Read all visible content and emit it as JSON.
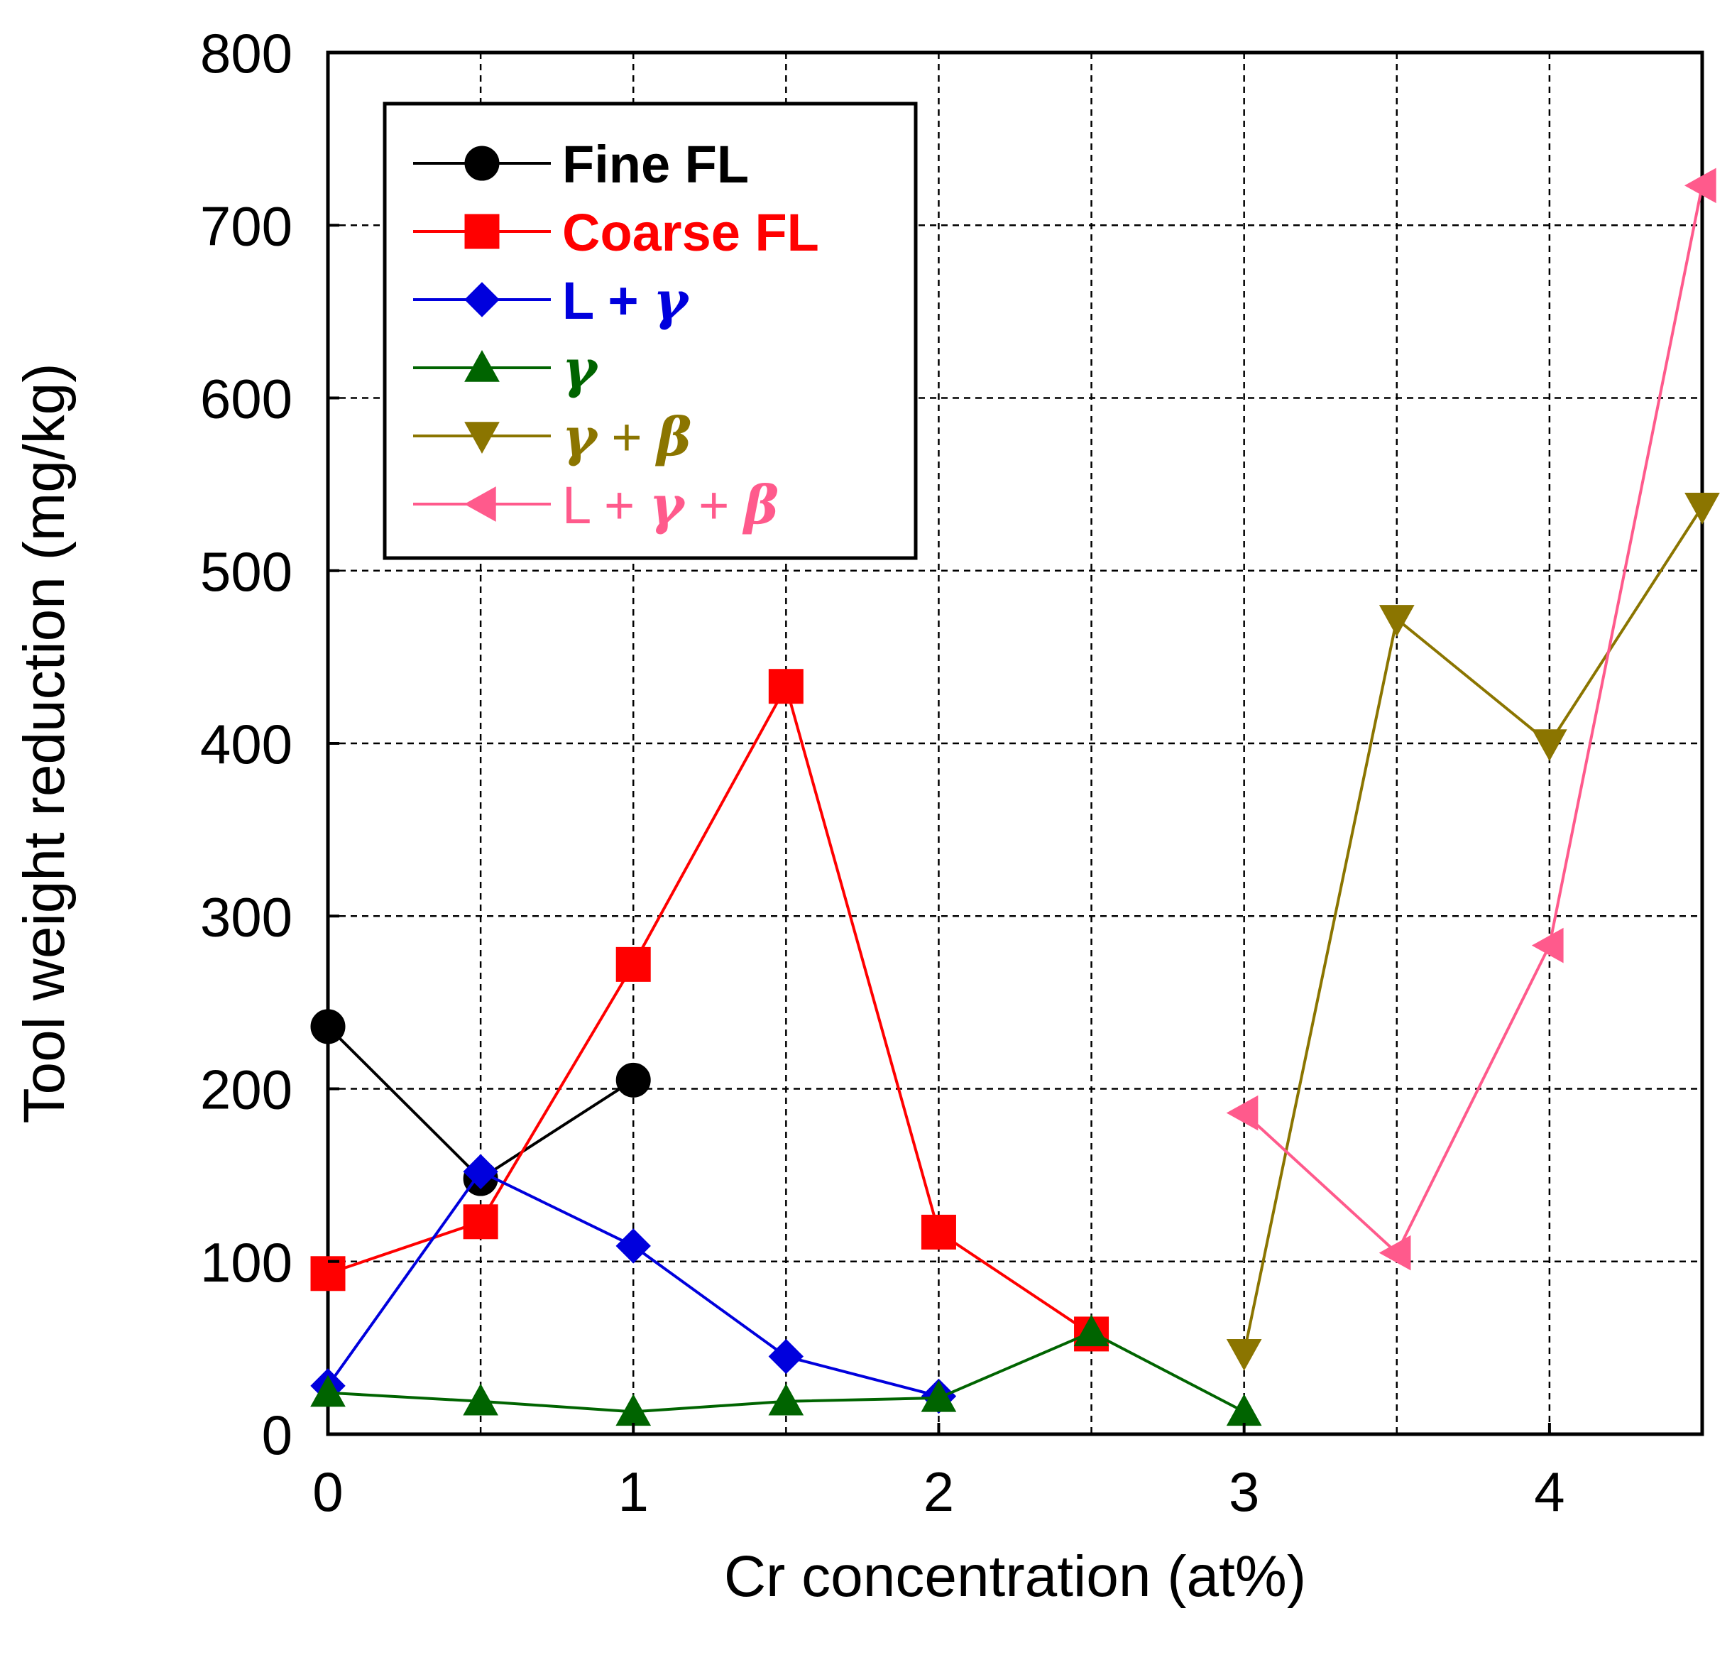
{
  "chart_data": {
    "type": "line",
    "title": "",
    "xlabel": "Cr concentration (at%)",
    "ylabel": "Tool weight reduction (mg/kg)",
    "xlim": [
      0,
      4.5
    ],
    "ylim": [
      0,
      800
    ],
    "xticks": [
      0,
      1,
      2,
      3,
      4
    ],
    "xtick_labels": [
      "0",
      "1",
      "2",
      "3",
      "4"
    ],
    "yticks": [
      0,
      100,
      200,
      300,
      400,
      500,
      600,
      700,
      800
    ],
    "ytick_labels": [
      "0",
      "100",
      "200",
      "300",
      "400",
      "500",
      "600",
      "700",
      "800"
    ],
    "grid": true,
    "legend_position": "top-left",
    "series": [
      {
        "name": "Fine FL",
        "color": "#000000",
        "marker": "circle",
        "x": [
          0,
          0.5,
          1
        ],
        "y": [
          236,
          148,
          205
        ]
      },
      {
        "name": "Coarse FL",
        "color": "#ff0000",
        "marker": "square",
        "x": [
          0,
          0.5,
          1,
          1.5,
          2,
          2.5
        ],
        "y": [
          93,
          123,
          272,
          433,
          117,
          58
        ]
      },
      {
        "name": "L + γ",
        "color": "#0000dd",
        "marker": "diamond",
        "x": [
          0,
          0.5,
          1,
          1.5,
          2
        ],
        "y": [
          28,
          152,
          109,
          45,
          22
        ]
      },
      {
        "name": "γ",
        "color": "#006400",
        "marker": "triangle-up",
        "x": [
          0,
          0.5,
          1,
          1.5,
          2,
          2.5,
          3
        ],
        "y": [
          24,
          19,
          13,
          19,
          21,
          59,
          13
        ]
      },
      {
        "name": "γ + β",
        "color": "#8b7500",
        "marker": "triangle-down",
        "x": [
          3,
          3.5,
          4,
          4.5
        ],
        "y": [
          47,
          472,
          400,
          537
        ]
      },
      {
        "name": "L + γ + β",
        "color": "#ff5a8c",
        "marker": "triangle-left",
        "x": [
          3,
          3.5,
          4,
          4.5
        ],
        "y": [
          186,
          105,
          283,
          723
        ]
      }
    ],
    "legend": [
      {
        "parts": [
          {
            "t": "Fine FL",
            "greek": false
          }
        ],
        "color": "#000000",
        "light": false
      },
      {
        "parts": [
          {
            "t": "Coarse FL",
            "greek": false
          }
        ],
        "color": "#ff0000",
        "light": false
      },
      {
        "parts": [
          {
            "t": "L + ",
            "greek": false
          },
          {
            "t": "γ",
            "greek": true
          }
        ],
        "color": "#0000dd",
        "light": false
      },
      {
        "parts": [
          {
            "t": "γ",
            "greek": true
          }
        ],
        "color": "#006400",
        "light": false
      },
      {
        "parts": [
          {
            "t": "γ",
            "greek": true
          },
          {
            "t": " + ",
            "greek": false
          },
          {
            "t": "β",
            "greek": true
          }
        ],
        "color": "#8b7500",
        "light": true
      },
      {
        "parts": [
          {
            "t": "L + ",
            "greek": false
          },
          {
            "t": "γ",
            "greek": true
          },
          {
            "t": " + ",
            "greek": false
          },
          {
            "t": "β",
            "greek": true
          }
        ],
        "color": "#ff5a8c",
        "light": true
      }
    ]
  }
}
